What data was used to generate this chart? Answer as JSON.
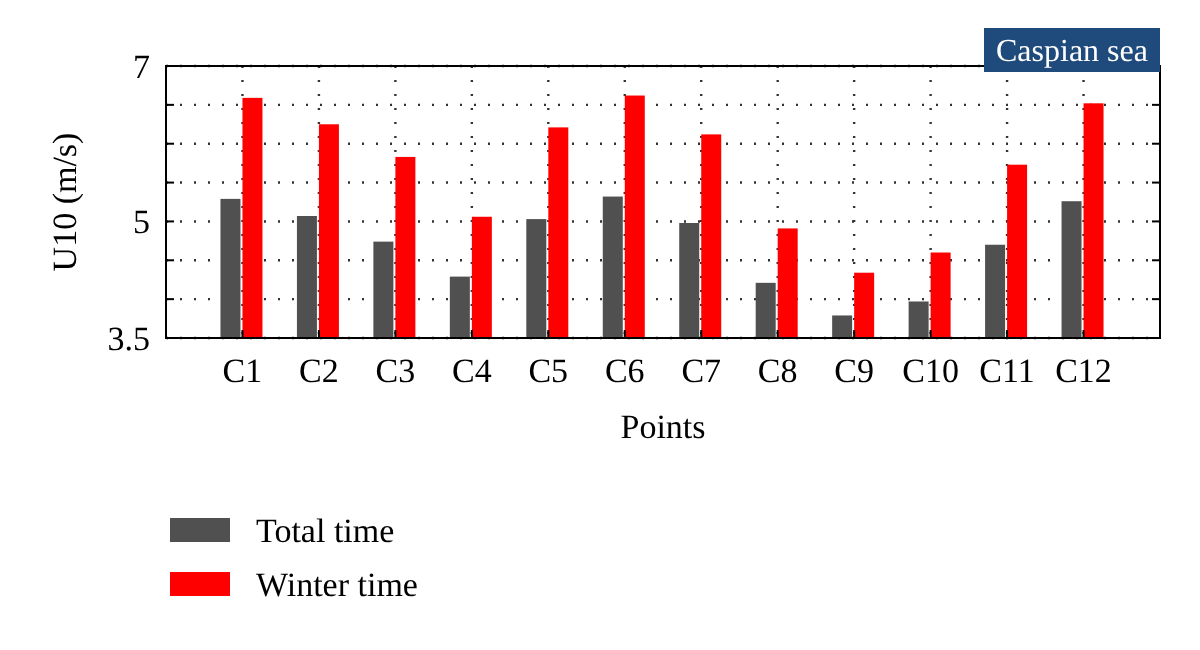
{
  "chart_data": {
    "type": "bar",
    "xlabel": "Points",
    "ylabel": "U10 (m/s)",
    "categories": [
      "C1",
      "C2",
      "C3",
      "C4",
      "C5",
      "C6",
      "C7",
      "C8",
      "C9",
      "C10",
      "C11",
      "C12"
    ],
    "series": [
      {
        "name": "Total time",
        "color": "#505050",
        "values": [
          5.29,
          5.07,
          4.74,
          4.29,
          5.03,
          5.32,
          4.98,
          4.21,
          3.79,
          3.97,
          4.7,
          5.26
        ]
      },
      {
        "name": "Winter time",
        "color": "#ff0000",
        "values": [
          6.59,
          6.25,
          5.83,
          5.06,
          6.21,
          6.62,
          6.12,
          4.91,
          4.34,
          4.6,
          5.73,
          6.52
        ]
      }
    ],
    "ylim": [
      3.5,
      7
    ],
    "yticks": [
      3.5,
      {
        "value": 4,
        "label": null
      },
      {
        "value": 4.5,
        "label": null
      },
      5,
      {
        "value": 5.5,
        "label": null
      },
      {
        "value": 6,
        "label": null
      },
      {
        "value": 6.5,
        "label": null
      },
      7
    ],
    "grid": true,
    "legend": "bottom left",
    "annotations": [
      "Caspian sea"
    ]
  }
}
